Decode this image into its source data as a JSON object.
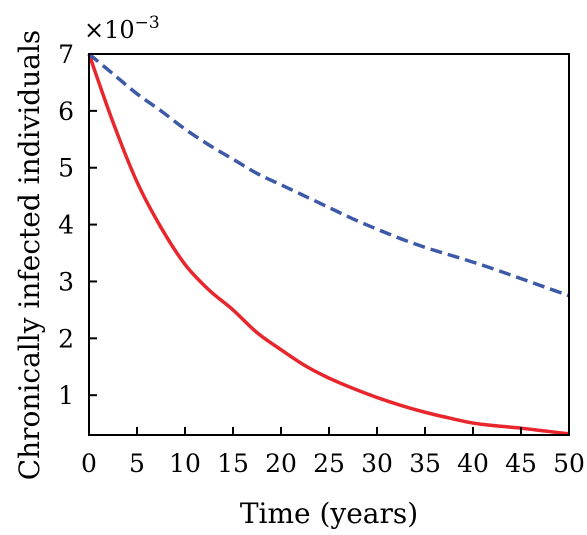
{
  "chart_data": {
    "type": "line",
    "title": "",
    "xlabel": "Time (years)",
    "ylabel": "Chronically infected individuals",
    "y_multiplier": {
      "base": "×10",
      "exponent": "−3"
    },
    "xlim": [
      0,
      50
    ],
    "ylim": [
      0.3,
      7
    ],
    "x_ticks": [
      {
        "value": 0,
        "label": "0"
      },
      {
        "value": 5,
        "label": "5"
      },
      {
        "value": 10,
        "label": "10"
      },
      {
        "value": 15,
        "label": "15"
      },
      {
        "value": 20,
        "label": "20"
      },
      {
        "value": 25,
        "label": "25"
      },
      {
        "value": 30,
        "label": "30"
      },
      {
        "value": 35,
        "label": "35"
      },
      {
        "value": 40,
        "label": "40"
      },
      {
        "value": 45,
        "label": "45"
      },
      {
        "value": 50,
        "label": "50"
      }
    ],
    "y_ticks": [
      {
        "value": 1,
        "label": "1"
      },
      {
        "value": 2,
        "label": "2"
      },
      {
        "value": 3,
        "label": "3"
      },
      {
        "value": 4,
        "label": "4"
      },
      {
        "value": 5,
        "label": "5"
      },
      {
        "value": 6,
        "label": "6"
      },
      {
        "value": 7,
        "label": "7"
      }
    ],
    "grid": false,
    "legend": "none",
    "x": [
      0,
      2.5,
      5,
      7.5,
      10,
      12.5,
      15,
      17.5,
      20,
      22.5,
      25,
      27.5,
      30,
      32.5,
      35,
      37.5,
      40,
      42.5,
      45,
      47.5,
      50
    ],
    "series": [
      {
        "color": "#e8262c",
        "style": "solid",
        "values": [
          7.0,
          5.8,
          4.75,
          3.95,
          3.3,
          2.85,
          2.5,
          2.1,
          1.8,
          1.52,
          1.3,
          1.12,
          0.96,
          0.82,
          0.7,
          0.6,
          0.51,
          0.46,
          0.42,
          0.37,
          0.32
        ]
      },
      {
        "color": "#3d5aa8",
        "style": "dashed",
        "values": [
          7.0,
          6.65,
          6.3,
          6.0,
          5.68,
          5.4,
          5.15,
          4.9,
          4.7,
          4.5,
          4.3,
          4.1,
          3.92,
          3.75,
          3.6,
          3.47,
          3.34,
          3.2,
          3.05,
          2.9,
          2.75
        ]
      }
    ]
  }
}
